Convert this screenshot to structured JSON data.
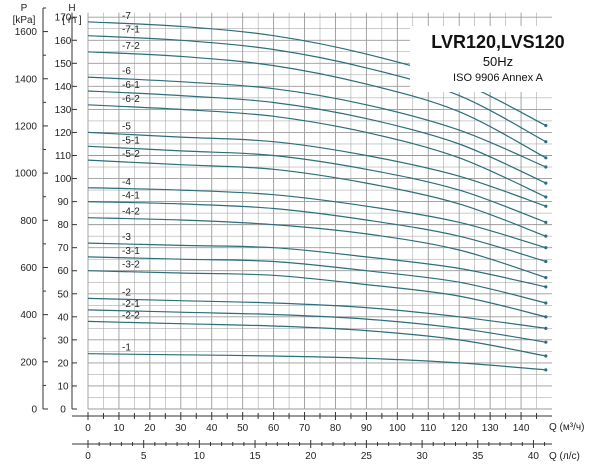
{
  "chart_data": {
    "type": "line",
    "title": "LVR120,LVS120",
    "subtitle_freq": "50Hz",
    "subtitle_std": "ISO 9906 Annex A",
    "left_axis": {
      "name": "P",
      "unit": "[kPa]",
      "ticks": [
        0,
        200,
        400,
        600,
        800,
        1000,
        1200,
        1400,
        1600
      ],
      "range": [
        0,
        1700
      ]
    },
    "head_axis": {
      "name": "H",
      "unit": "[ m ]",
      "ticks": [
        0,
        10,
        20,
        30,
        40,
        50,
        60,
        70,
        80,
        90,
        100,
        110,
        120,
        130,
        140,
        150,
        160,
        170
      ],
      "range": [
        0,
        174
      ]
    },
    "x_axis_flow": {
      "label": "Q (м³/ч)",
      "ticks": [
        0,
        10,
        20,
        30,
        40,
        50,
        60,
        70,
        80,
        90,
        100,
        110,
        120,
        130,
        140
      ],
      "range": [
        0,
        150
      ]
    },
    "x_axis_flow_ls": {
      "label": "Q (л/с)",
      "ticks": [
        0,
        5,
        10,
        15,
        20,
        25,
        30,
        35,
        40
      ],
      "range": [
        0,
        41.67
      ]
    },
    "x_max_flow": 148,
    "grid": true,
    "series_x": [
      0,
      30,
      60,
      90,
      120,
      148
    ],
    "series": [
      {
        "name": "-7",
        "values": [
          168,
          166,
          162,
          154,
          142,
          123
        ]
      },
      {
        "name": "-7-1",
        "values": [
          162,
          160,
          156,
          148,
          136,
          116
        ]
      },
      {
        "name": "-7-2",
        "values": [
          155,
          153,
          149,
          141,
          129,
          109
        ]
      },
      {
        "name": "-6",
        "values": [
          144,
          142,
          139,
          132,
          121,
          105
        ]
      },
      {
        "name": "-6-1",
        "values": [
          138,
          136,
          133,
          126,
          115,
          98
        ]
      },
      {
        "name": "-6-2",
        "values": [
          132,
          130,
          127,
          120,
          109,
          92
        ]
      },
      {
        "name": "-5",
        "values": [
          120,
          118,
          116,
          110,
          101,
          88
        ]
      },
      {
        "name": "-5-1",
        "values": [
          114,
          112,
          110,
          104,
          95,
          81
        ]
      },
      {
        "name": "-5-2",
        "values": [
          108,
          106,
          104,
          98,
          89,
          75
        ]
      },
      {
        "name": "-4",
        "values": [
          96,
          95,
          93,
          88,
          81,
          70
        ]
      },
      {
        "name": "-4-1",
        "values": [
          90,
          89,
          87,
          82,
          75,
          64
        ]
      },
      {
        "name": "-4-2",
        "values": [
          83,
          82,
          80,
          76,
          69,
          57
        ]
      },
      {
        "name": "-3",
        "values": [
          72,
          71,
          70,
          66,
          61,
          53
        ]
      },
      {
        "name": "-3-1",
        "values": [
          66,
          65,
          64,
          60,
          55,
          46
        ]
      },
      {
        "name": "-3-2",
        "values": [
          60,
          59,
          58,
          54,
          49,
          40
        ]
      },
      {
        "name": "-2",
        "values": [
          48,
          47,
          46,
          44,
          40,
          35
        ]
      },
      {
        "name": "-2-1",
        "values": [
          43,
          42,
          41,
          39,
          35,
          29
        ]
      },
      {
        "name": "-2-2",
        "values": [
          38,
          37,
          36,
          34,
          30,
          23
        ]
      },
      {
        "name": "-1",
        "values": [
          24,
          23.5,
          23,
          22,
          20,
          17
        ]
      }
    ],
    "colors": {
      "curve": "#2b6f78",
      "grid": "#9a9a9a",
      "axis": "#333333"
    }
  }
}
